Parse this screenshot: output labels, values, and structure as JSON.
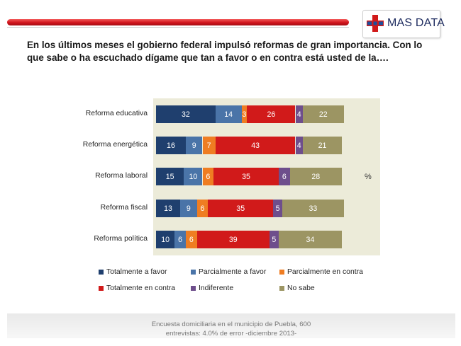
{
  "header": {
    "logo_text": "MAS DATA",
    "question": "En los últimos meses el gobierno federal impulsó reformas de gran importancia. Con lo que sabe o ha escuchado dígame que tan a favor o en contra está usted de la…."
  },
  "chart_data": {
    "type": "bar",
    "orientation": "horizontal",
    "stacked": true,
    "unit_label": "%",
    "categories": [
      "Reforma educativa",
      "Reforma energética",
      "Reforma laboral",
      "Reforma fiscal",
      "Reforma política"
    ],
    "series": [
      {
        "name": "Totalmente a favor",
        "color": "#1f3f6e",
        "values": [
          32,
          16,
          15,
          13,
          10
        ]
      },
      {
        "name": "Parcialmente a favor",
        "color": "#4a74a8",
        "values": [
          14,
          9,
          10,
          9,
          6
        ]
      },
      {
        "name": "Parcialmente en contra",
        "color": "#ef7d22",
        "values": [
          3,
          7,
          6,
          6,
          6
        ]
      },
      {
        "name": "Totalmente en contra",
        "color": "#d11a1a",
        "values": [
          26,
          43,
          35,
          35,
          39
        ]
      },
      {
        "name": "Indiferente",
        "color": "#6e4e8c",
        "values": [
          4,
          4,
          6,
          5,
          5
        ]
      },
      {
        "name": "No sabe",
        "color": "#9c9563",
        "values": [
          22,
          21,
          28,
          33,
          34
        ]
      }
    ],
    "legend_position": "bottom"
  },
  "footer": {
    "line1": "Encuesta domiciliaria en el municipio de Puebla, 600",
    "line2": "entrevistas: 4.0% de error -diciembre 2013-"
  }
}
